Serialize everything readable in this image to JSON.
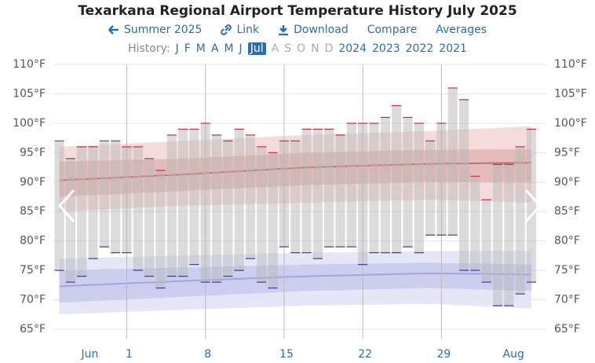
{
  "nav": {
    "title": "Texarkana Regional Airport Temperature History July 2025",
    "links": [
      "Summer 2025",
      "Link",
      "Download",
      "Compare",
      "Averages"
    ],
    "history_label": "History:",
    "history": [
      "J",
      "F",
      "M",
      "A",
      "M",
      "J",
      "Jul",
      "A",
      "S",
      "O",
      "N",
      "D",
      "2024",
      "2023",
      "2022",
      "2021"
    ],
    "selected": 6,
    "disabled": [
      7,
      8,
      9,
      10,
      11
    ]
  },
  "chart_data": {
    "type": "range-bar",
    "x": [
      -6,
      -5,
      -4,
      -3,
      -2,
      -1,
      0,
      1,
      2,
      3,
      4,
      5,
      6,
      7,
      8,
      9,
      10,
      11,
      12,
      13,
      14,
      15,
      16,
      17,
      18,
      19,
      20,
      21,
      22,
      23,
      24,
      25,
      26,
      27,
      28,
      29,
      30,
      31,
      32,
      33,
      34,
      35,
      36
    ],
    "series": [
      {
        "color": "#c0303a",
        "values": [
          97,
          94,
          96,
          96,
          97,
          97,
          96,
          96,
          94,
          92,
          98,
          99,
          99,
          100,
          98,
          97,
          99,
          98,
          96,
          95,
          97,
          97,
          99,
          99,
          99,
          98,
          100,
          100,
          100,
          101,
          103,
          101,
          100,
          97,
          100,
          106,
          104,
          91,
          87,
          93,
          93,
          96,
          99
        ]
      },
      {
        "color": "#3b3ba0",
        "values": [
          75,
          73,
          74,
          77,
          79,
          78,
          78,
          75,
          74,
          72,
          74,
          74,
          76,
          73,
          73,
          74,
          75,
          77,
          73,
          72,
          79,
          78,
          78,
          77,
          79,
          79,
          79,
          76,
          78,
          78,
          78,
          79,
          78,
          81,
          81,
          81,
          75,
          75,
          73,
          69,
          69,
          71,
          73
        ]
      }
    ],
    "bar_color": "#b8b8b8",
    "normal_x": [
      -6,
      5,
      16,
      27,
      36
    ],
    "bands": [
      {
        "color": "#f3d6d6",
        "low": [
          85,
          86,
          86.5,
          87,
          86.5
        ],
        "high": [
          96,
          97,
          98,
          98.7,
          99.5
        ]
      },
      {
        "color": "#e2b4b4",
        "low": [
          87.5,
          88.5,
          89.5,
          90,
          89.9
        ],
        "high": [
          93.5,
          94,
          95,
          95.5,
          95.6
        ]
      },
      {
        "color": "#e2e2f4",
        "low": [
          67.5,
          68.3,
          69,
          69.3,
          68.5
        ],
        "high": [
          77,
          77.5,
          78,
          78.3,
          78.3
        ]
      },
      {
        "color": "#c8c8ec",
        "low": [
          69.5,
          70.5,
          71.5,
          72,
          71.5
        ],
        "high": [
          75,
          75.5,
          76,
          76.3,
          76
        ]
      }
    ],
    "averages": [
      {
        "color": "#c07070",
        "values": [
          90.3,
          91.3,
          92.5,
          93.1,
          93.3
        ]
      },
      {
        "color": "#a4a4e2",
        "values": [
          72.3,
          73.2,
          74.0,
          74.5,
          74.3
        ]
      }
    ],
    "xlim": [
      -6.6,
      37.4
    ],
    "xticks": [
      {
        "value": -3.5,
        "label": "Jun"
      },
      {
        "value": 0,
        "label": "1"
      },
      {
        "value": 7,
        "label": "8"
      },
      {
        "value": 14,
        "label": "15"
      },
      {
        "value": 21,
        "label": "22"
      },
      {
        "value": 28,
        "label": "29"
      },
      {
        "value": 34.2,
        "label": "Aug"
      }
    ],
    "ylim": [
      65,
      110
    ],
    "yticks": [
      {
        "value": 65,
        "label": "65°F"
      },
      {
        "value": 70,
        "label": "70°F"
      },
      {
        "value": 75,
        "label": "75°F"
      },
      {
        "value": 80,
        "label": "80°F"
      },
      {
        "value": 85,
        "label": "85°F"
      },
      {
        "value": 90,
        "label": "90°F"
      },
      {
        "value": 95,
        "label": "95°F"
      },
      {
        "value": 100,
        "label": "100°F"
      },
      {
        "value": 105,
        "label": "105°F"
      },
      {
        "value": 110,
        "label": "110°F"
      }
    ],
    "grid": true
  }
}
